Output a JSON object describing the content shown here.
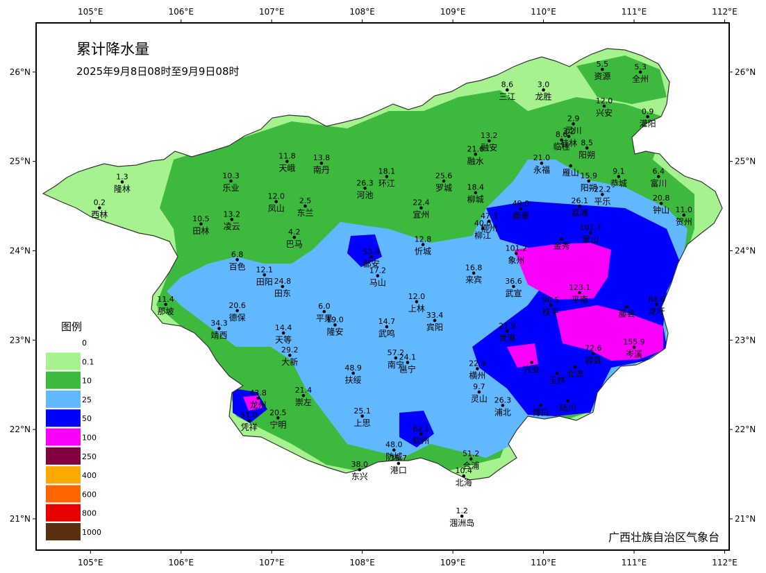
{
  "map": {
    "title": "累计降水量",
    "subtitle": "2025年9月8日08时至9月9日08时",
    "agency": "广西壮族自治区气象台",
    "lon_ticks": [
      "105°E",
      "106°E",
      "107°E",
      "108°E",
      "109°E",
      "110°E",
      "111°E",
      "112°E"
    ],
    "lat_ticks": [
      "26°N",
      "25°N",
      "24°N",
      "23°N",
      "22°N",
      "21°N"
    ],
    "extent": {
      "lon": [
        104.4,
        112.05
      ],
      "lat": [
        20.65,
        26.55
      ]
    }
  },
  "legend": {
    "title": "图例",
    "classes": [
      {
        "label": "0",
        "color": "#ffffff"
      },
      {
        "label": "0.1",
        "color": "#a6f28f"
      },
      {
        "label": "10",
        "color": "#3dba3d"
      },
      {
        "label": "25",
        "color": "#61b8ff"
      },
      {
        "label": "50",
        "color": "#0000ff"
      },
      {
        "label": "100",
        "color": "#fa00fa"
      },
      {
        "label": "250",
        "color": "#800040"
      },
      {
        "label": "400",
        "color": "#ffaa00"
      },
      {
        "label": "600",
        "color": "#ff6600"
      },
      {
        "label": "800",
        "color": "#e60000"
      },
      {
        "label": "1000",
        "color": "#5a3010"
      }
    ]
  },
  "stations": [
    {
      "name": "资源",
      "value": "5.5",
      "lon": 110.65,
      "lat": 26.03
    },
    {
      "name": "全州",
      "value": "5.3",
      "lon": 111.07,
      "lat": 26.0
    },
    {
      "name": "三江",
      "value": "8.6",
      "lon": 109.6,
      "lat": 25.8
    },
    {
      "name": "龙胜",
      "value": "3.0",
      "lon": 110.0,
      "lat": 25.8
    },
    {
      "name": "兴安",
      "value": "12.0",
      "lon": 110.67,
      "lat": 25.62
    },
    {
      "name": "灌阳",
      "value": "0.9",
      "lon": 111.15,
      "lat": 25.5
    },
    {
      "name": "灵川",
      "value": "2.9",
      "lon": 110.33,
      "lat": 25.42
    },
    {
      "name": "融安",
      "value": "13.2",
      "lon": 109.4,
      "lat": 25.23
    },
    {
      "name": "桂林",
      "value": "3.2",
      "lon": 110.28,
      "lat": 25.28
    },
    {
      "name": "临桂",
      "value": "8.6",
      "lon": 110.2,
      "lat": 25.24
    },
    {
      "name": "融水",
      "value": "21.6",
      "lon": 109.25,
      "lat": 25.08
    },
    {
      "name": "阳朔",
      "value": "8.5",
      "lon": 110.48,
      "lat": 25.15
    },
    {
      "name": "永福",
      "value": "21.0",
      "lon": 109.98,
      "lat": 24.98
    },
    {
      "name": "雁山",
      "value": "",
      "lon": 110.3,
      "lat": 24.95
    },
    {
      "name": "富川",
      "value": "6.4",
      "lon": 111.27,
      "lat": 24.83
    },
    {
      "name": "天峨",
      "value": "11.8",
      "lon": 107.17,
      "lat": 25.0
    },
    {
      "name": "南丹",
      "value": "13.8",
      "lon": 107.55,
      "lat": 24.98
    },
    {
      "name": "恭城",
      "value": "9.1",
      "lon": 110.83,
      "lat": 24.83
    },
    {
      "name": "阳朔",
      "value": "15.9",
      "lon": 110.5,
      "lat": 24.78
    },
    {
      "name": "平乐",
      "value": "22.2",
      "lon": 110.65,
      "lat": 24.63
    },
    {
      "name": "隆林",
      "value": "1.3",
      "lon": 105.35,
      "lat": 24.77
    },
    {
      "name": "乐业",
      "value": "10.3",
      "lon": 106.55,
      "lat": 24.78
    },
    {
      "name": "环江",
      "value": "18.1",
      "lon": 108.27,
      "lat": 24.83
    },
    {
      "name": "罗城",
      "value": "25.6",
      "lon": 108.9,
      "lat": 24.78
    },
    {
      "name": "柳城",
      "value": "18.4",
      "lon": 109.25,
      "lat": 24.65
    },
    {
      "name": "凤山",
      "value": "12.0",
      "lon": 107.05,
      "lat": 24.55
    },
    {
      "name": "东兰",
      "value": "2.5",
      "lon": 107.37,
      "lat": 24.5
    },
    {
      "name": "河池",
      "value": "26.3",
      "lon": 108.03,
      "lat": 24.7
    },
    {
      "name": "钟山",
      "value": "20.8",
      "lon": 111.3,
      "lat": 24.53
    },
    {
      "name": "贺州",
      "value": "11.0",
      "lon": 111.55,
      "lat": 24.4
    },
    {
      "name": "西林",
      "value": "0.2",
      "lon": 105.1,
      "lat": 24.48
    },
    {
      "name": "宜州",
      "value": "22.4",
      "lon": 108.65,
      "lat": 24.48
    },
    {
      "name": "柳州",
      "value": "47.3",
      "lon": 109.4,
      "lat": 24.33
    },
    {
      "name": "鹿寨",
      "value": "49.0",
      "lon": 109.75,
      "lat": 24.47
    },
    {
      "name": "荔浦",
      "value": "26.1",
      "lon": 110.4,
      "lat": 24.5
    },
    {
      "name": "田林",
      "value": "10.5",
      "lon": 106.22,
      "lat": 24.3
    },
    {
      "name": "凌云",
      "value": "13.2",
      "lon": 106.56,
      "lat": 24.35
    },
    {
      "name": "柳江",
      "value": "40.0",
      "lon": 109.33,
      "lat": 24.25
    },
    {
      "name": "象州",
      "value": "101.2",
      "lon": 109.7,
      "lat": 23.97
    },
    {
      "name": "蒙山",
      "value": "101.7",
      "lon": 110.52,
      "lat": 24.2
    },
    {
      "name": "巴马",
      "value": "4.2",
      "lon": 107.25,
      "lat": 24.15
    },
    {
      "name": "金秀",
      "value": "",
      "lon": 110.2,
      "lat": 24.13
    },
    {
      "name": "忻城",
      "value": "12.8",
      "lon": 108.67,
      "lat": 24.07
    },
    {
      "name": "都安",
      "value": "53.4",
      "lon": 108.1,
      "lat": 23.93
    },
    {
      "name": "百色",
      "value": "6.8",
      "lon": 106.62,
      "lat": 23.9
    },
    {
      "name": "来宾",
      "value": "16.8",
      "lon": 109.23,
      "lat": 23.75
    },
    {
      "name": "田阳",
      "value": "12.1",
      "lon": 106.92,
      "lat": 23.73
    },
    {
      "name": "田东",
      "value": "24.8",
      "lon": 107.12,
      "lat": 23.6
    },
    {
      "name": "马山",
      "value": "17.2",
      "lon": 108.17,
      "lat": 23.72
    },
    {
      "name": "武宣",
      "value": "36.6",
      "lon": 109.67,
      "lat": 23.6
    },
    {
      "name": "平南",
      "value": "123.1",
      "lon": 110.4,
      "lat": 23.53
    },
    {
      "name": "龙圩",
      "value": "88.6",
      "lon": 111.25,
      "lat": 23.4
    },
    {
      "name": "那坡",
      "value": "11.4",
      "lon": 105.83,
      "lat": 23.4
    },
    {
      "name": "德保",
      "value": "20.6",
      "lon": 106.62,
      "lat": 23.33
    },
    {
      "name": "上林",
      "value": "12.0",
      "lon": 108.6,
      "lat": 23.43
    },
    {
      "name": "宾阳",
      "value": "33.4",
      "lon": 108.8,
      "lat": 23.22
    },
    {
      "name": "桂平",
      "value": "90.5",
      "lon": 110.08,
      "lat": 23.39
    },
    {
      "name": "藤县",
      "value": "",
      "lon": 110.92,
      "lat": 23.37
    },
    {
      "name": "平果",
      "value": "6.0",
      "lon": 107.58,
      "lat": 23.32
    },
    {
      "name": "隆安",
      "value": "19.0",
      "lon": 107.7,
      "lat": 23.17
    },
    {
      "name": "武鸣",
      "value": "14.7",
      "lon": 108.27,
      "lat": 23.15
    },
    {
      "name": "靖西",
      "value": "34.3",
      "lon": 106.42,
      "lat": 23.13
    },
    {
      "name": "天等",
      "value": "14.4",
      "lon": 107.13,
      "lat": 23.08
    },
    {
      "name": "贵港",
      "value": "21.9",
      "lon": 109.6,
      "lat": 23.1
    },
    {
      "name": "岑溪",
      "value": "155.9",
      "lon": 111.0,
      "lat": 22.92
    },
    {
      "name": "大新",
      "value": "29.2",
      "lon": 107.2,
      "lat": 22.83
    },
    {
      "name": "邕宁",
      "value": "24.1",
      "lon": 108.5,
      "lat": 22.75
    },
    {
      "name": "容县",
      "value": "72.6",
      "lon": 110.55,
      "lat": 22.85
    },
    {
      "name": "横州",
      "value": "22.9",
      "lon": 109.27,
      "lat": 22.68
    },
    {
      "name": "南宁",
      "value": "57.2",
      "lon": 108.37,
      "lat": 22.8
    },
    {
      "name": "兴业",
      "value": "",
      "lon": 109.87,
      "lat": 22.75
    },
    {
      "name": "玉林",
      "value": "",
      "lon": 110.15,
      "lat": 22.63
    },
    {
      "name": "扶绥",
      "value": "48.9",
      "lon": 107.9,
      "lat": 22.63
    },
    {
      "name": "北流",
      "value": "",
      "lon": 110.35,
      "lat": 22.7
    },
    {
      "name": "龙州",
      "value": "43.8",
      "lon": 106.85,
      "lat": 22.35
    },
    {
      "name": "崇左",
      "value": "21.4",
      "lon": 107.35,
      "lat": 22.38
    },
    {
      "name": "灵山",
      "value": "9.7",
      "lon": 109.29,
      "lat": 22.42
    },
    {
      "name": "陆川",
      "value": "",
      "lon": 110.27,
      "lat": 22.32
    },
    {
      "name": "浦北",
      "value": "26.3",
      "lon": 109.55,
      "lat": 22.27
    },
    {
      "name": "博白",
      "value": "",
      "lon": 109.97,
      "lat": 22.27
    },
    {
      "name": "上思",
      "value": "25.1",
      "lon": 108.0,
      "lat": 22.15
    },
    {
      "name": "凭祥",
      "value": "51.0",
      "lon": 106.75,
      "lat": 22.1
    },
    {
      "name": "宁明",
      "value": "20.5",
      "lon": 107.07,
      "lat": 22.13
    },
    {
      "name": "钦州",
      "value": "62.1",
      "lon": 108.65,
      "lat": 21.95
    },
    {
      "name": "防城",
      "value": "48.0",
      "lon": 108.35,
      "lat": 21.77
    },
    {
      "name": "港口",
      "value": "35.7",
      "lon": 108.4,
      "lat": 21.62
    },
    {
      "name": "合浦",
      "value": "51.2",
      "lon": 109.2,
      "lat": 21.67
    },
    {
      "name": "东兴",
      "value": "38.0",
      "lon": 107.97,
      "lat": 21.55
    },
    {
      "name": "北海",
      "value": "10.4",
      "lon": 109.12,
      "lat": 21.48
    },
    {
      "name": "涠洲岛",
      "value": "1.2",
      "lon": 109.1,
      "lat": 21.03
    }
  ]
}
